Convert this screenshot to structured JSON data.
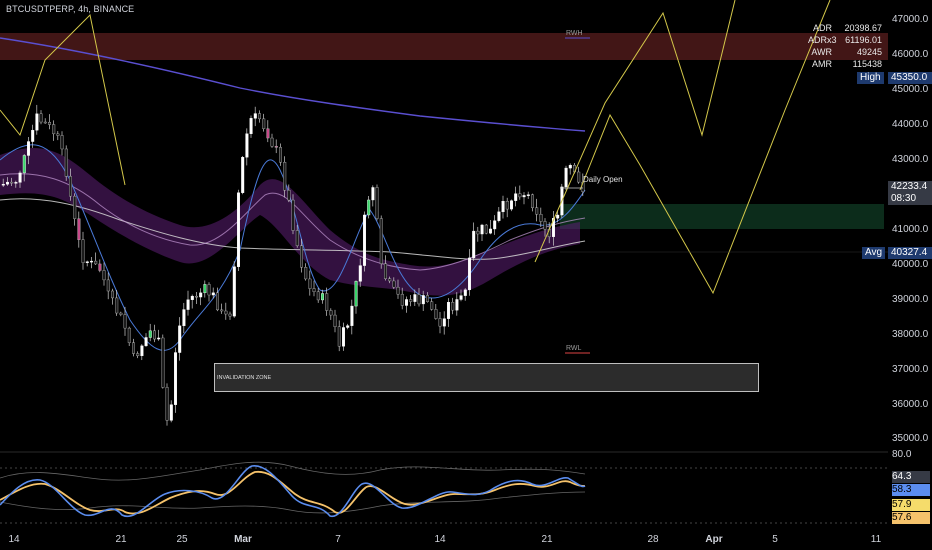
{
  "header": {
    "symbol_title": "BTCUSDTPERP, 4h, BINANCE"
  },
  "stats": [
    {
      "key": "ADR",
      "value": "20398.67"
    },
    {
      "key": "ADRx3",
      "value": "61196.01"
    },
    {
      "key": "AWR",
      "value": "49245"
    },
    {
      "key": "AMR",
      "value": "115438"
    }
  ],
  "price_axis": {
    "ticks": [
      "47000.0",
      "46000.0",
      "45000.0",
      "44000.0",
      "43000.0",
      "41000.0",
      "40000.0",
      "39000.0",
      "38000.0",
      "37000.0",
      "36000.0",
      "35000.0"
    ],
    "high_label": "High",
    "high_value": "45350.0",
    "last_price": "42233.4",
    "countdown": "08:30",
    "avg_label": "Avg",
    "avg_value": "40327.4"
  },
  "oscillator_axis": {
    "top_tick": "80.0",
    "values": [
      "64.3",
      "58.3",
      "57.9",
      "57.6"
    ]
  },
  "time_axis": {
    "labels": [
      "14",
      "21",
      "25",
      "Mar",
      "7",
      "14",
      "21",
      "28",
      "Apr",
      "5",
      "11"
    ]
  },
  "annotations": {
    "invalidation_zone": "INVALIDATION ZONE",
    "rwh": "RWH",
    "rwl": "RWL",
    "daily_open": "Daily Open"
  },
  "colors": {
    "background": "#000000",
    "up_candle": "#ffffff",
    "down_candle": "#1c1c1c",
    "zigzag": "#d4c84a",
    "resistance_zone": "#5a1e1e",
    "support_zone": "#0f3320",
    "envelope": "#6a2a8a",
    "ma200": "#5a4fd0",
    "stoch_k": "#5b8def",
    "stoch_d": "#f5c26b",
    "high_tag": "#1e3a6e",
    "last_tag": "#363a45",
    "osc_tag_blue": "#5b8def",
    "osc_tag_yellow": "#f5dc6b",
    "osc_tag_orange": "#f5c26b"
  }
}
